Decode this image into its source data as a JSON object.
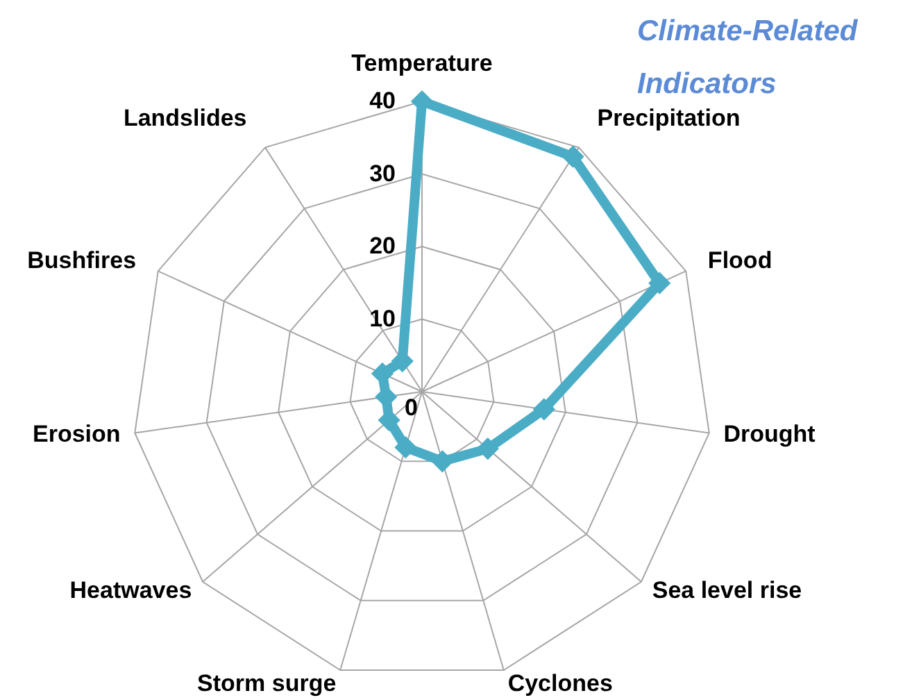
{
  "chart_data": {
    "type": "radar",
    "title": "Climate-Related Indicators",
    "categories": [
      "Temperature",
      "Precipitation",
      "Flood",
      "Drought",
      "Sea level rise",
      "Cyclones",
      "Storm surge",
      "Heatwaves",
      "Erosion",
      "Bushfires",
      "Landslides"
    ],
    "series": [
      {
        "color": "#4bacc6",
        "values": [
          40,
          38.5,
          36,
          17,
          12,
          10,
          8,
          6,
          5,
          6,
          5
        ]
      }
    ],
    "ylim": [
      0,
      40
    ],
    "yticks": [
      0,
      10,
      20,
      30,
      40
    ],
    "grid": true,
    "marker": "diamond"
  }
}
